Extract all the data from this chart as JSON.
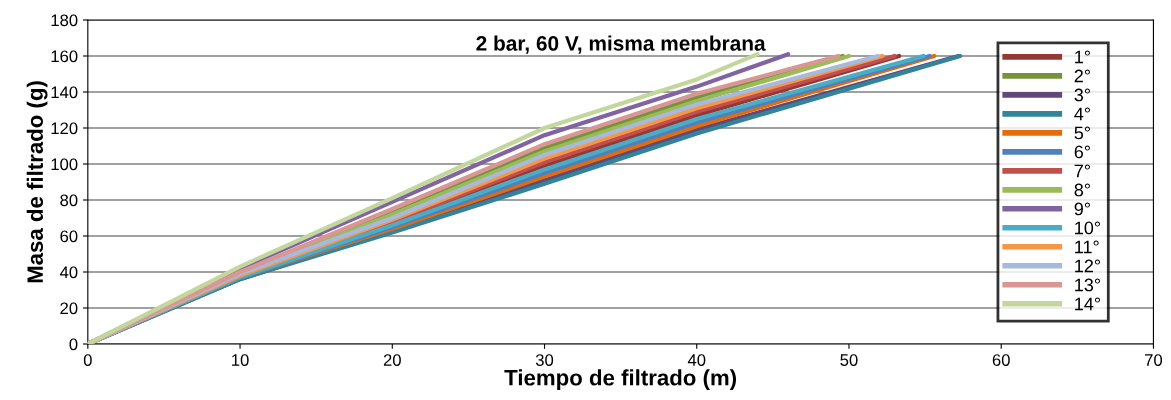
{
  "chart_data": {
    "type": "line",
    "title": "2 bar, 60 V, misma membrana",
    "xlabel": "Tiempo de filtrado (m)",
    "ylabel": "Masa de filtrado (g)",
    "xlim": [
      0,
      70
    ],
    "xticks": [
      0,
      10,
      20,
      30,
      40,
      50,
      60,
      70
    ],
    "ylim": [
      0,
      180
    ],
    "yticks": [
      0,
      20,
      40,
      60,
      80,
      100,
      120,
      140,
      160,
      180
    ],
    "grid": "y",
    "legend": "right",
    "marker": "none",
    "line_style": "solid",
    "series": [
      {
        "name": "1°",
        "color": "#953735",
        "x": [
          0,
          10,
          20,
          30,
          40,
          53.3
        ],
        "values": [
          0,
          38,
          67,
          99,
          127,
          160
        ]
      },
      {
        "name": "2°",
        "color": "#76923c",
        "x": [
          0,
          10,
          20,
          30,
          40,
          49.6
        ],
        "values": [
          0,
          40,
          73,
          109,
          137,
          160
        ]
      },
      {
        "name": "3°",
        "color": "#5f497a",
        "x": [
          0,
          10,
          20,
          30,
          40,
          57.2
        ],
        "values": [
          0,
          36,
          63,
          91,
          119,
          160
        ]
      },
      {
        "name": "4°",
        "color": "#31849b",
        "x": [
          0,
          10,
          20,
          30,
          40,
          57.3
        ],
        "values": [
          0,
          36,
          62,
          89,
          117,
          160
        ]
      },
      {
        "name": "5°",
        "color": "#e46c0a",
        "x": [
          0,
          10,
          20,
          30,
          40,
          55.6
        ],
        "values": [
          0,
          37,
          64,
          93,
          121,
          160
        ]
      },
      {
        "name": "6°",
        "color": "#4f81bd",
        "x": [
          0,
          10,
          20,
          30,
          40,
          55.3
        ],
        "values": [
          0,
          37,
          65,
          95,
          123,
          160
        ]
      },
      {
        "name": "7°",
        "color": "#c0504d",
        "x": [
          0,
          10,
          20,
          30,
          40,
          53.0
        ],
        "values": [
          0,
          38,
          68,
          101,
          129,
          160
        ]
      },
      {
        "name": "8°",
        "color": "#9bbb59",
        "x": [
          0,
          10,
          20,
          30,
          40,
          50.0
        ],
        "values": [
          0,
          39,
          72,
          107,
          135,
          160
        ]
      },
      {
        "name": "9°",
        "color": "#8064a2",
        "x": [
          0,
          10,
          20,
          30,
          40,
          46.0
        ],
        "values": [
          0,
          42,
          79,
          116,
          143,
          161
        ]
      },
      {
        "name": "10°",
        "color": "#4bacc6",
        "x": [
          0,
          10,
          20,
          30,
          40,
          54.9
        ],
        "values": [
          0,
          37,
          66,
          97,
          125,
          160
        ]
      },
      {
        "name": "11°",
        "color": "#f79646",
        "x": [
          0,
          10,
          20,
          30,
          40,
          52.2
        ],
        "values": [
          0,
          38,
          69,
          103,
          131,
          160
        ]
      },
      {
        "name": "12°",
        "color": "#a7b9dc",
        "x": [
          0,
          10,
          20,
          30,
          40,
          51.9
        ],
        "values": [
          0,
          39,
          70,
          105,
          133,
          160
        ]
      },
      {
        "name": "13°",
        "color": "#d99694",
        "x": [
          0,
          10,
          20,
          30,
          40,
          49.3
        ],
        "values": [
          0,
          40,
          75,
          111,
          139,
          160
        ]
      },
      {
        "name": "14°",
        "color": "#c3d69b",
        "x": [
          0,
          10,
          20,
          30,
          40,
          44.0
        ],
        "values": [
          0,
          43,
          81,
          120,
          147,
          161
        ]
      }
    ]
  }
}
